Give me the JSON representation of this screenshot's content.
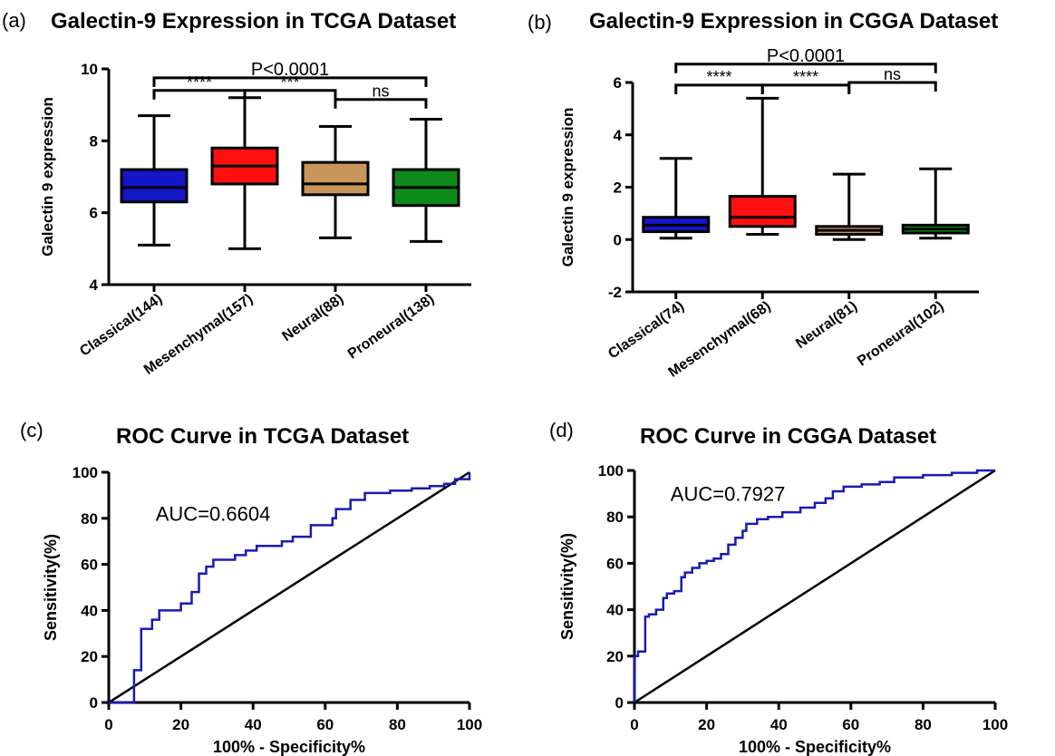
{
  "panels": {
    "a": {
      "tag": "(a)",
      "title": "Galectin-9 Expression in TCGA Dataset"
    },
    "b": {
      "tag": "(b)",
      "title": "Galectin-9 Expression in CGGA Dataset"
    },
    "c": {
      "tag": "(c)",
      "title": "ROC Curve in TCGA Dataset"
    },
    "d": {
      "tag": "(d)",
      "title": "ROC Curve in CGGA Dataset"
    }
  },
  "chart_data": [
    {
      "id": "a",
      "type": "box",
      "title": "Galectin-9 Expression in TCGA Dataset",
      "ylabel": "Galectin 9 expression",
      "xlabel": "",
      "ylim": [
        4,
        10
      ],
      "yticks": [
        4,
        6,
        8,
        10
      ],
      "categories": [
        "Classical(144)",
        "Mesenchymal(157)",
        "Neural(88)",
        "Proneural(138)"
      ],
      "colors": [
        "#1515c8",
        "#ff1010",
        "#c8965a",
        "#0e8a1c"
      ],
      "boxes": [
        {
          "min": 5.1,
          "q1": 6.3,
          "median": 6.7,
          "q3": 7.2,
          "max": 8.7
        },
        {
          "min": 5.0,
          "q1": 6.8,
          "median": 7.3,
          "q3": 7.8,
          "max": 9.2
        },
        {
          "min": 5.3,
          "q1": 6.5,
          "median": 6.8,
          "q3": 7.4,
          "max": 8.4
        },
        {
          "min": 5.2,
          "q1": 6.2,
          "median": 6.7,
          "q3": 7.2,
          "max": 8.6
        }
      ],
      "comparisons": [
        {
          "from": 0,
          "to": 3,
          "label": "P<0.0001",
          "y": 9.75
        },
        {
          "from": 0,
          "to": 1,
          "label": "****",
          "y": 9.4
        },
        {
          "from": 1,
          "to": 2,
          "label": "***",
          "y": 9.4
        },
        {
          "from": 2,
          "to": 3,
          "label": "ns",
          "y": 9.15
        }
      ]
    },
    {
      "id": "b",
      "type": "box",
      "title": "Galectin-9 Expression in CGGA Dataset",
      "ylabel": "Galectin 9 expression",
      "xlabel": "",
      "ylim": [
        -2,
        6
      ],
      "yticks": [
        -2,
        0,
        2,
        4,
        6
      ],
      "categories": [
        "Classical(74)",
        "Mesenchymal(68)",
        "Neural(81)",
        "Proneural(102)"
      ],
      "colors": [
        "#1515c8",
        "#ff1010",
        "#c8965a",
        "#0e8a1c"
      ],
      "boxes": [
        {
          "min": 0.05,
          "q1": 0.3,
          "median": 0.55,
          "q3": 0.85,
          "max": 3.1
        },
        {
          "min": 0.2,
          "q1": 0.5,
          "median": 0.85,
          "q3": 1.65,
          "max": 5.4
        },
        {
          "min": 0.0,
          "q1": 0.2,
          "median": 0.35,
          "q3": 0.5,
          "max": 2.5
        },
        {
          "min": 0.05,
          "q1": 0.25,
          "median": 0.4,
          "q3": 0.55,
          "max": 2.7
        }
      ],
      "comparisons": [
        {
          "from": 0,
          "to": 3,
          "label": "P<0.0001",
          "y": 6.7
        },
        {
          "from": 0,
          "to": 1,
          "label": "****",
          "y": 5.9
        },
        {
          "from": 1,
          "to": 2,
          "label": "****",
          "y": 5.9
        },
        {
          "from": 2,
          "to": 3,
          "label": "ns",
          "y": 6.0
        }
      ]
    },
    {
      "id": "c",
      "type": "line",
      "title": "ROC Curve in TCGA Dataset",
      "xlabel": "100% - Specificity%",
      "ylabel": "Sensitivity(%)",
      "xlim": [
        0,
        100
      ],
      "ylim": [
        0,
        100
      ],
      "xticks": [
        0,
        20,
        40,
        60,
        80,
        100
      ],
      "yticks": [
        0,
        20,
        40,
        60,
        80,
        100
      ],
      "annotation": "AUC=0.6604",
      "curve_color": "#1a1ab4",
      "reference_line": [
        [
          0,
          0
        ],
        [
          100,
          100
        ]
      ],
      "roc": [
        [
          0,
          0
        ],
        [
          7,
          0
        ],
        [
          7,
          14
        ],
        [
          9,
          14
        ],
        [
          9,
          32
        ],
        [
          12,
          32
        ],
        [
          12,
          36
        ],
        [
          14,
          36
        ],
        [
          14,
          40
        ],
        [
          20,
          40
        ],
        [
          20,
          43
        ],
        [
          23,
          43
        ],
        [
          23,
          48
        ],
        [
          25,
          48
        ],
        [
          25,
          56
        ],
        [
          27,
          56
        ],
        [
          27,
          59
        ],
        [
          29,
          59
        ],
        [
          29,
          62
        ],
        [
          35,
          62
        ],
        [
          35,
          64
        ],
        [
          38,
          64
        ],
        [
          38,
          66
        ],
        [
          41,
          66
        ],
        [
          41,
          68
        ],
        [
          48,
          68
        ],
        [
          48,
          70
        ],
        [
          51,
          70
        ],
        [
          51,
          72
        ],
        [
          56,
          72
        ],
        [
          56,
          77
        ],
        [
          62,
          77
        ],
        [
          62,
          80
        ],
        [
          63,
          80
        ],
        [
          63,
          84
        ],
        [
          67,
          84
        ],
        [
          67,
          88
        ],
        [
          71,
          88
        ],
        [
          71,
          91
        ],
        [
          78,
          91
        ],
        [
          78,
          92
        ],
        [
          84,
          92
        ],
        [
          84,
          93
        ],
        [
          89,
          93
        ],
        [
          89,
          94
        ],
        [
          93,
          94
        ],
        [
          93,
          95
        ],
        [
          96,
          95
        ],
        [
          96,
          97
        ],
        [
          100,
          97
        ],
        [
          100,
          100
        ]
      ]
    },
    {
      "id": "d",
      "type": "line",
      "title": "ROC Curve in CGGA Dataset",
      "xlabel": "100% - Specificity%",
      "ylabel": "Sensitivity(%)",
      "xlim": [
        0,
        100
      ],
      "ylim": [
        0,
        100
      ],
      "xticks": [
        0,
        20,
        40,
        60,
        80,
        100
      ],
      "yticks": [
        0,
        20,
        40,
        60,
        80,
        100
      ],
      "annotation": "AUC=0.7927",
      "curve_color": "#1a1ab4",
      "reference_line": [
        [
          0,
          0
        ],
        [
          100,
          100
        ]
      ],
      "roc": [
        [
          0,
          0
        ],
        [
          0,
          20
        ],
        [
          1,
          20
        ],
        [
          1,
          22
        ],
        [
          3,
          22
        ],
        [
          3,
          37
        ],
        [
          4,
          37
        ],
        [
          4,
          38
        ],
        [
          6,
          38
        ],
        [
          6,
          40
        ],
        [
          8,
          40
        ],
        [
          8,
          45
        ],
        [
          9,
          45
        ],
        [
          9,
          47
        ],
        [
          11,
          47
        ],
        [
          11,
          48
        ],
        [
          13,
          48
        ],
        [
          13,
          54
        ],
        [
          14,
          54
        ],
        [
          14,
          56
        ],
        [
          16,
          56
        ],
        [
          16,
          58
        ],
        [
          18,
          58
        ],
        [
          18,
          60
        ],
        [
          20,
          60
        ],
        [
          20,
          61
        ],
        [
          22,
          61
        ],
        [
          22,
          62
        ],
        [
          24,
          62
        ],
        [
          24,
          64
        ],
        [
          26,
          64
        ],
        [
          26,
          68
        ],
        [
          28,
          68
        ],
        [
          28,
          71
        ],
        [
          30,
          71
        ],
        [
          30,
          74
        ],
        [
          31,
          74
        ],
        [
          31,
          77
        ],
        [
          34,
          77
        ],
        [
          34,
          79
        ],
        [
          37,
          79
        ],
        [
          37,
          80
        ],
        [
          41,
          80
        ],
        [
          41,
          82
        ],
        [
          46,
          82
        ],
        [
          46,
          84
        ],
        [
          50,
          84
        ],
        [
          50,
          86
        ],
        [
          53,
          86
        ],
        [
          53,
          88
        ],
        [
          55,
          88
        ],
        [
          55,
          91
        ],
        [
          58,
          91
        ],
        [
          58,
          93
        ],
        [
          63,
          93
        ],
        [
          63,
          94
        ],
        [
          68,
          94
        ],
        [
          68,
          95
        ],
        [
          72,
          95
        ],
        [
          72,
          97
        ],
        [
          80,
          97
        ],
        [
          80,
          98
        ],
        [
          88,
          98
        ],
        [
          88,
          99
        ],
        [
          95,
          99
        ],
        [
          95,
          100
        ],
        [
          100,
          100
        ]
      ]
    }
  ]
}
